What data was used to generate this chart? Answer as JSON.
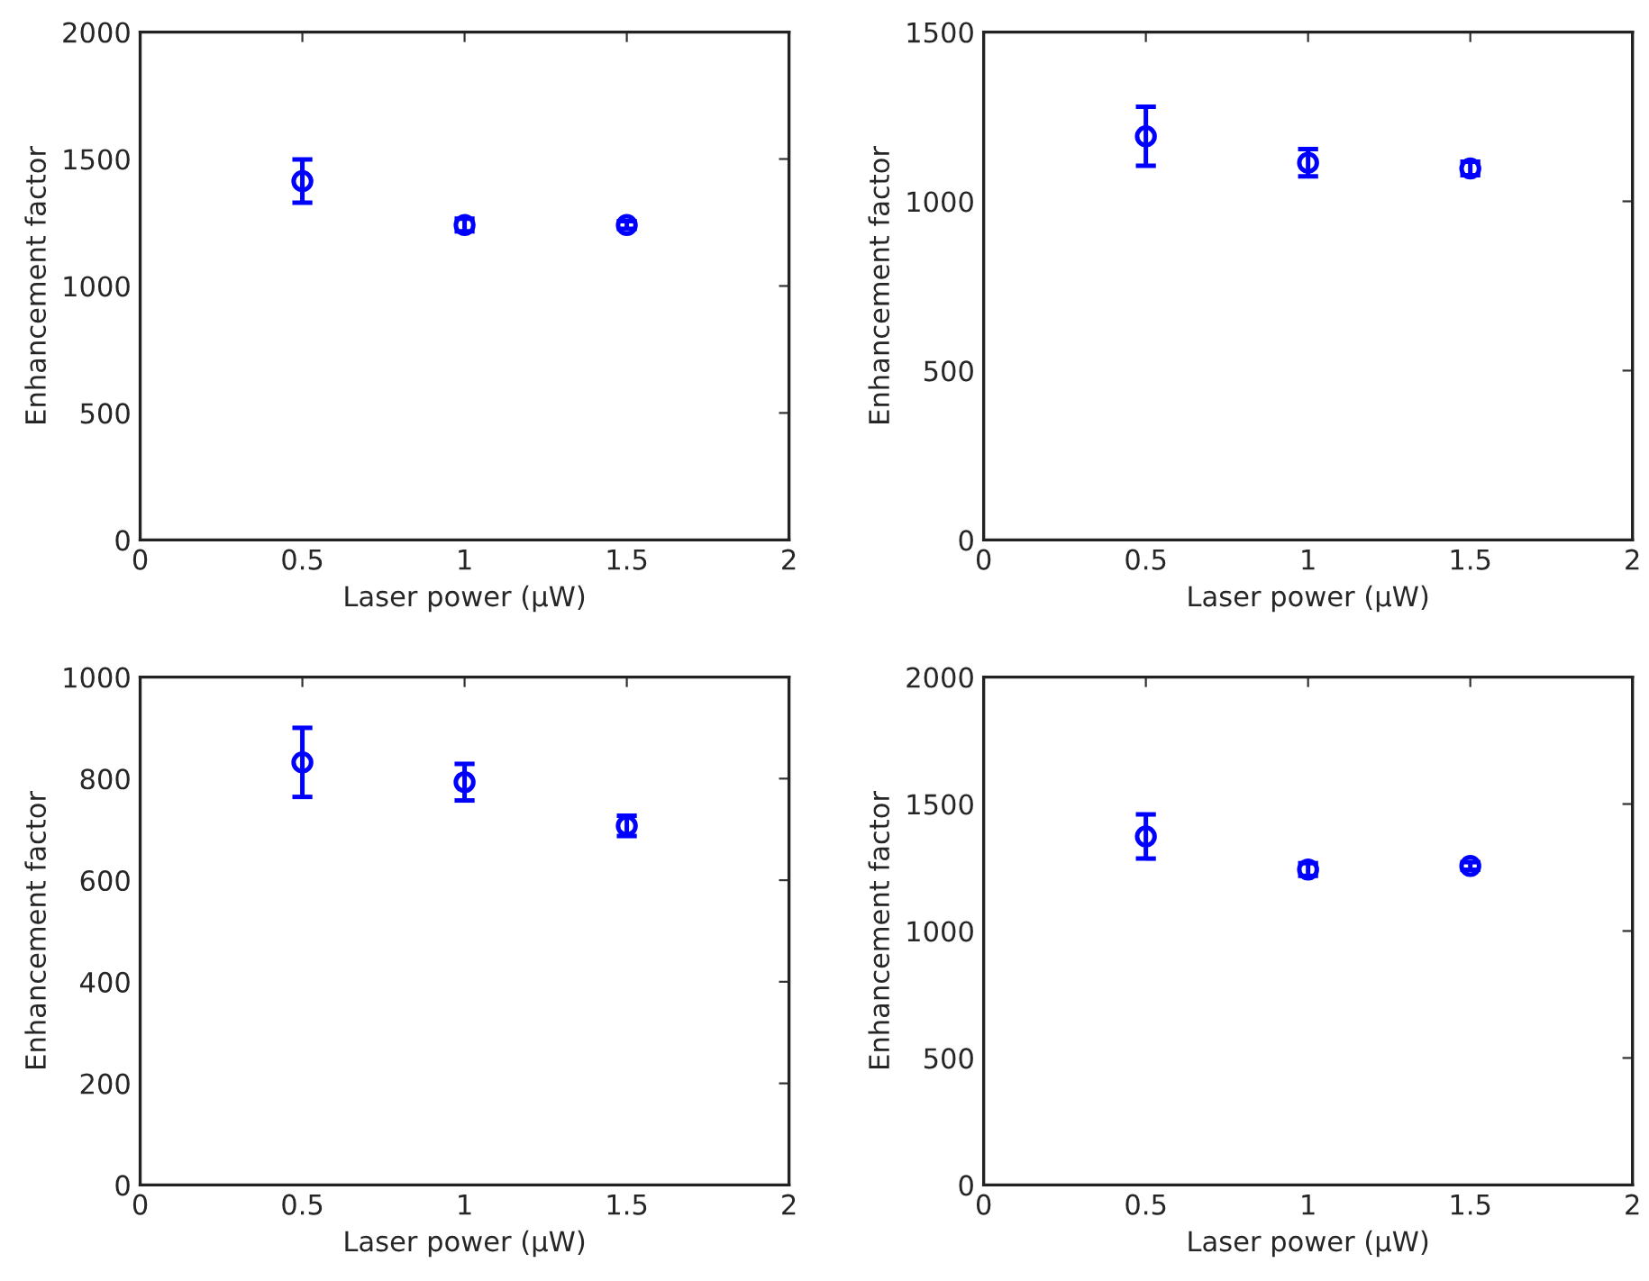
{
  "chart_data": [
    {
      "type": "scatter",
      "xlabel": "Laser power (μW)",
      "ylabel": "Enhancement factor",
      "x": [
        0.5,
        1,
        1.5
      ],
      "marker": "circle",
      "grid": false,
      "xlim": [
        0,
        2
      ],
      "xticks": [
        0,
        0.5,
        1,
        1.5,
        2
      ],
      "ylim": [
        0,
        2000
      ],
      "yticks": [
        0,
        500,
        1000,
        1500,
        2000
      ],
      "series": [
        {
          "color": "#0000ff",
          "values": [
            1413,
            1240,
            1240
          ],
          "errors": [
            85,
            25,
            15
          ]
        }
      ]
    },
    {
      "type": "scatter",
      "xlabel": "Laser power (μW)",
      "ylabel": "Enhancement factor",
      "x": [
        0.5,
        1,
        1.5
      ],
      "marker": "circle",
      "grid": false,
      "xlim": [
        0,
        2
      ],
      "xticks": [
        0,
        0.5,
        1,
        1.5,
        2
      ],
      "ylim": [
        0,
        1500
      ],
      "yticks": [
        0,
        500,
        1000,
        1500
      ],
      "series": [
        {
          "color": "#0000ff",
          "values": [
            1192,
            1114,
            1097
          ],
          "errors": [
            87,
            40,
            20
          ]
        }
      ]
    },
    {
      "type": "scatter",
      "xlabel": "Laser power (μW)",
      "ylabel": "Enhancement factor",
      "x": [
        0.5,
        1,
        1.5
      ],
      "marker": "circle",
      "grid": false,
      "xlim": [
        0,
        2
      ],
      "xticks": [
        0,
        0.5,
        1,
        1.5,
        2
      ],
      "ylim": [
        0,
        1000
      ],
      "yticks": [
        0,
        200,
        400,
        600,
        800,
        1000
      ],
      "series": [
        {
          "color": "#0000ff",
          "values": [
            832,
            793,
            707
          ],
          "errors": [
            68,
            36,
            20
          ]
        }
      ]
    },
    {
      "type": "scatter",
      "xlabel": "Laser power (μW)",
      "ylabel": "Enhancement factor",
      "x": [
        0.5,
        1,
        1.5
      ],
      "marker": "circle",
      "grid": false,
      "xlim": [
        0,
        2
      ],
      "xticks": [
        0,
        0.5,
        1,
        1.5,
        2
      ],
      "ylim": [
        0,
        2000
      ],
      "yticks": [
        0,
        500,
        1000,
        1500,
        2000
      ],
      "series": [
        {
          "color": "#0000ff",
          "values": [
            1372,
            1242,
            1256
          ],
          "errors": [
            87,
            25,
            15
          ]
        }
      ]
    }
  ]
}
